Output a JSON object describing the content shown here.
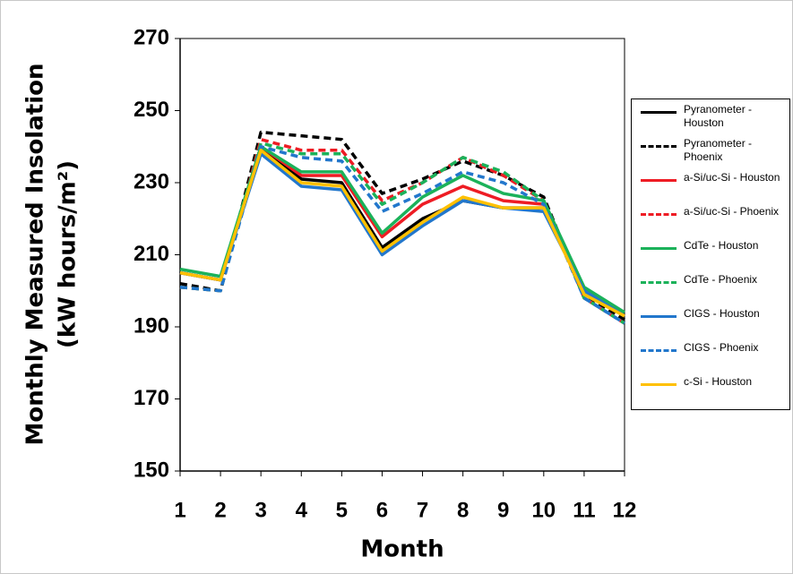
{
  "chart_data": {
    "type": "line",
    "x_label": "Month",
    "y_label": [
      "Monthly Measured Insolation",
      "(kW hours/m²)"
    ],
    "x": [
      1,
      2,
      3,
      4,
      5,
      6,
      7,
      8,
      9,
      10,
      11,
      12
    ],
    "xlim": [
      1,
      12
    ],
    "xticks": [
      1,
      2,
      3,
      4,
      5,
      6,
      7,
      8,
      9,
      10,
      11,
      12
    ],
    "ylim": [
      150,
      270
    ],
    "yticks": [
      150,
      170,
      190,
      210,
      230,
      250,
      270
    ],
    "grid": false,
    "legend": "right",
    "series": [
      {
        "name": "Pyranometer - Houston",
        "color": "#000000",
        "dash": false,
        "values": [
          205,
          203,
          240,
          231,
          230,
          212,
          220,
          225,
          223,
          223,
          200,
          193
        ]
      },
      {
        "name": "Pyranometer - Phoenix",
        "color": "#000000",
        "dash": true,
        "values": [
          202,
          200,
          244,
          243,
          242,
          227,
          231,
          236,
          232,
          226,
          199,
          192
        ]
      },
      {
        "name": "a-Si/uc-Si - Houston",
        "color": "#ee1c24",
        "dash": false,
        "values": [
          205,
          203,
          240,
          232,
          232,
          215,
          224,
          229,
          225,
          224,
          200,
          193
        ]
      },
      {
        "name": "a-Si/uc-Si - Phoenix",
        "color": "#ee1c24",
        "dash": true,
        "values": [
          201,
          200,
          242,
          239,
          239,
          225,
          230,
          237,
          232,
          225,
          198,
          191
        ]
      },
      {
        "name": "CdTe - Houston",
        "color": "#1bb25a",
        "dash": false,
        "values": [
          206,
          204,
          240,
          233,
          233,
          216,
          226,
          232,
          227,
          225,
          201,
          194
        ]
      },
      {
        "name": "CdTe - Phoenix",
        "color": "#1bb25a",
        "dash": true,
        "values": [
          201,
          200,
          241,
          238,
          238,
          224,
          230,
          237,
          233,
          225,
          198,
          191
        ]
      },
      {
        "name": "CIGS - Houston",
        "color": "#2277cc",
        "dash": false,
        "values": [
          205,
          203,
          238,
          229,
          228,
          210,
          218,
          225,
          223,
          222,
          200,
          193
        ]
      },
      {
        "name": "CIGS - Phoenix",
        "color": "#2277cc",
        "dash": true,
        "values": [
          201,
          200,
          240,
          237,
          236,
          222,
          227,
          233,
          230,
          224,
          198,
          191
        ]
      },
      {
        "name": "c-Si - Houston",
        "color": "#ffc000",
        "dash": false,
        "values": [
          205,
          203,
          239,
          230,
          229,
          211,
          219,
          226,
          223,
          223,
          199,
          193
        ]
      }
    ]
  }
}
